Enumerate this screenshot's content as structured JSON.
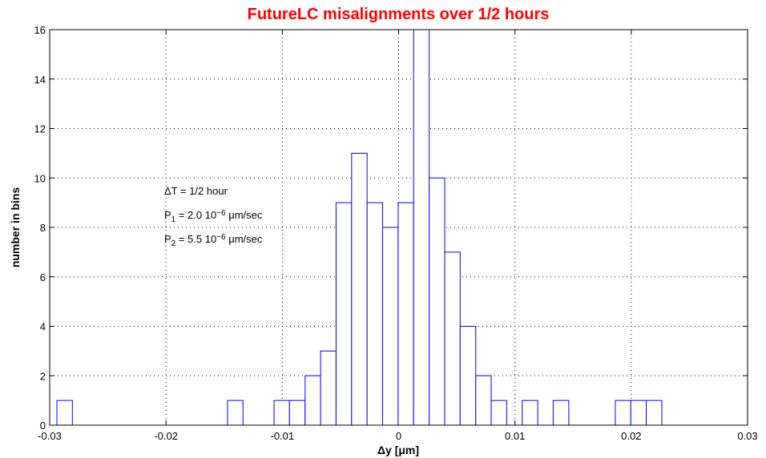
{
  "chart_data": {
    "type": "histogram",
    "title": "FutureLC misalignments over 1/2 hours",
    "xlabel": "Δy [μm]",
    "ylabel": "number in bins",
    "bins": [
      -0.02938,
      -0.02805,
      -0.02671,
      -0.02538,
      -0.02405,
      -0.02271,
      -0.02138,
      -0.02005,
      -0.01871,
      -0.01738,
      -0.01605,
      -0.01471,
      -0.01338,
      -0.01204,
      -0.01071,
      -0.00938,
      -0.00804,
      -0.00671,
      -0.00538,
      -0.00404,
      -0.00271,
      -0.00138,
      -4e-05,
      0.00129,
      0.00263,
      0.00396,
      0.00529,
      0.00663,
      0.00796,
      0.00929,
      0.01063,
      0.01196,
      0.01329,
      0.01463,
      0.01596,
      0.01729,
      0.01863,
      0.01996,
      0.02129,
      0.02263
    ],
    "values": [
      1,
      0,
      0,
      0,
      0,
      0,
      0,
      0,
      0,
      0,
      0,
      1,
      0,
      0,
      1,
      1,
      2,
      3,
      9,
      11,
      9,
      8,
      9,
      16,
      10,
      7,
      4,
      2,
      1,
      0,
      1,
      0,
      1,
      0,
      0,
      0,
      1,
      1,
      1
    ],
    "color": "#0000ff",
    "xlim": [
      -0.03,
      0.03
    ],
    "xticks": [
      -0.03,
      -0.02,
      -0.01,
      0,
      0.01,
      0.02,
      0.03
    ],
    "ylim": [
      0,
      16
    ],
    "yticks": [
      0,
      2,
      4,
      6,
      8,
      10,
      12,
      14,
      16
    ],
    "grid": true,
    "annotations": [
      [
        "ΔT = 1/2 hour"
      ],
      [
        "P",
        "1",
        " = 2.0 10",
        "−6",
        " μm/sec"
      ],
      [
        "P",
        "2",
        " = 5.5 10",
        "−6",
        " μm/sec"
      ]
    ]
  }
}
